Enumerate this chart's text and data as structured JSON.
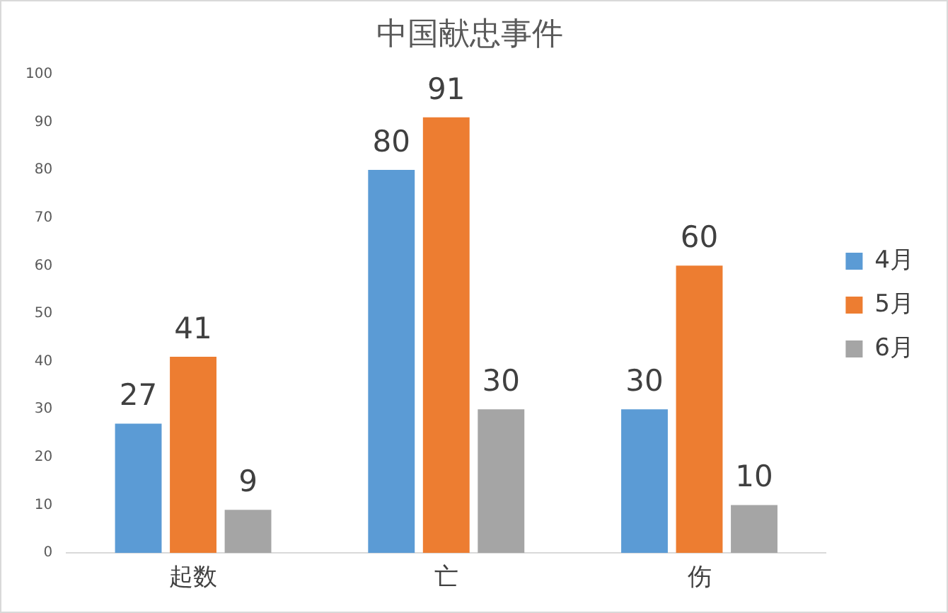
{
  "chart_data": {
    "type": "bar",
    "title": "中国献忠事件",
    "categories": [
      "起数",
      "亡",
      "伤"
    ],
    "series": [
      {
        "name": "4月",
        "color": "#5b9bd5",
        "values": [
          27,
          80,
          30
        ]
      },
      {
        "name": "5月",
        "color": "#ed7d31",
        "values": [
          41,
          91,
          60
        ]
      },
      {
        "name": "6月",
        "color": "#a5a5a5",
        "values": [
          9,
          30,
          10
        ]
      }
    ],
    "ylim": [
      0,
      100
    ],
    "yticks": [
      0,
      10,
      20,
      30,
      40,
      50,
      60,
      70,
      80,
      90,
      100
    ],
    "grid": false,
    "legend": "right",
    "data_labels": true
  }
}
